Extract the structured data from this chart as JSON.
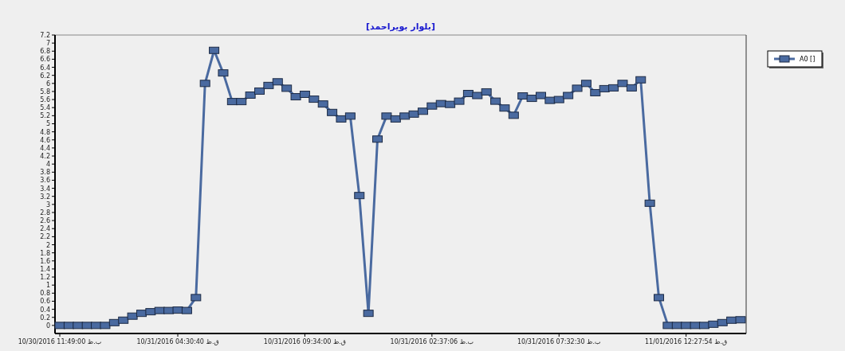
{
  "chart_data": {
    "type": "line",
    "title": "[بلوار بویراحمد]",
    "categories": [
      "10/30/2016 11:49:00 ب.ظ",
      null,
      null,
      null,
      null,
      null,
      null,
      null,
      null,
      null,
      null,
      null,
      null,
      "10/31/2016 04:30:40 ق.ظ",
      null,
      null,
      null,
      null,
      null,
      null,
      null,
      null,
      null,
      null,
      null,
      null,
      null,
      "10/31/2016 09:34:00 ق.ظ",
      null,
      null,
      null,
      null,
      null,
      null,
      null,
      null,
      null,
      null,
      null,
      null,
      null,
      "10/31/2016 02:37:06 ب.ظ",
      null,
      null,
      null,
      null,
      null,
      null,
      null,
      null,
      null,
      null,
      null,
      null,
      null,
      "10/31/2016 07:32:30 ب.ظ",
      null,
      null,
      null,
      null,
      null,
      null,
      null,
      null,
      null,
      null,
      null,
      null,
      null,
      "11/01/2016 12:27:54 ق.ظ",
      null,
      null,
      null,
      null,
      null,
      null
    ],
    "series": [
      {
        "name": "A0 []",
        "color": "#4a6aa0",
        "values": [
          0,
          0,
          0,
          0,
          0,
          0,
          0.07,
          0.13,
          0.23,
          0.3,
          0.34,
          0.37,
          0.37,
          0.38,
          0.37,
          0.69,
          6.0,
          6.82,
          6.26,
          5.55,
          5.55,
          5.71,
          5.81,
          5.95,
          6.04,
          5.88,
          5.67,
          5.73,
          5.61,
          5.49,
          5.28,
          5.12,
          5.19,
          3.22,
          0.3,
          4.62,
          5.19,
          5.12,
          5.19,
          5.24,
          5.31,
          5.44,
          5.5,
          5.48,
          5.56,
          5.75,
          5.7,
          5.79,
          5.56,
          5.39,
          5.21,
          5.69,
          5.63,
          5.7,
          5.58,
          5.6,
          5.7,
          5.88,
          6.0,
          5.77,
          5.87,
          5.89,
          6.0,
          5.89,
          6.09,
          3.03,
          0.69,
          0,
          0,
          0,
          0,
          0,
          0.03,
          0.07,
          0.13,
          0.14
        ]
      }
    ],
    "ylim": [
      -0.2,
      7.2
    ],
    "yticks": [
      0,
      0.2,
      0.4,
      0.6,
      0.8,
      1,
      1.2,
      1.4,
      1.6,
      1.8,
      2,
      2.2,
      2.4,
      2.6,
      2.8,
      3,
      3.2,
      3.4,
      3.6,
      3.8,
      4,
      4.2,
      4.4,
      4.6,
      4.8,
      5,
      5.2,
      5.4,
      5.6,
      5.8,
      6,
      6.2,
      6.4,
      6.6,
      6.8,
      7,
      7.2
    ],
    "marker": "square",
    "line_style": "solid",
    "legend": "top right",
    "grid": false
  }
}
